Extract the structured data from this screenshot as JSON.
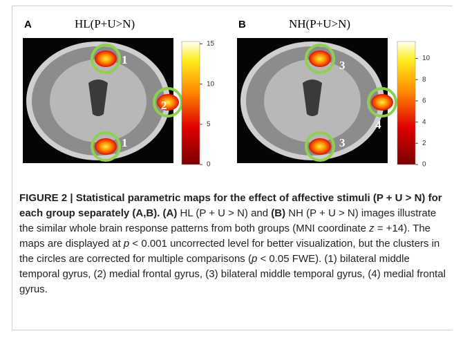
{
  "panels": [
    {
      "letter": "A",
      "title": "HL(P+U>N)",
      "markers": [
        "1",
        "2",
        "1"
      ],
      "colorbar": {
        "clim": [
          0,
          15.3
        ],
        "ticks": [
          15,
          10,
          5,
          0
        ]
      }
    },
    {
      "letter": "B",
      "title": "NH(P+U>N)",
      "markers": [
        "3",
        "4",
        "3"
      ],
      "colorbar": {
        "clim": [
          0,
          11.6
        ],
        "ticks": [
          10,
          8,
          6,
          4,
          2,
          0
        ]
      }
    }
  ],
  "caption": {
    "runs": [
      "FIGURE 2 | Statistical parametric maps for the effect of affective stimuli (P + U > N) for each group separately (A,B). (A)",
      " HL (P + U > N) and ",
      "(B)",
      " NH (P + U > N) images illustrate the similar whole brain response patterns from both groups (MNI coordinate ",
      "z",
      " = +14). The maps are displayed at ",
      "p",
      " < 0.001 uncorrected level for better visualization, but the clusters in the circles are corrected for multiple comparisons (",
      "p",
      " < 0.05 FWE). (1) bilateral middle temporal gyrus, (2) medial frontal gyrus, (3) bilateral middle temporal gyrus, (4) medial frontal gyrus."
    ]
  }
}
